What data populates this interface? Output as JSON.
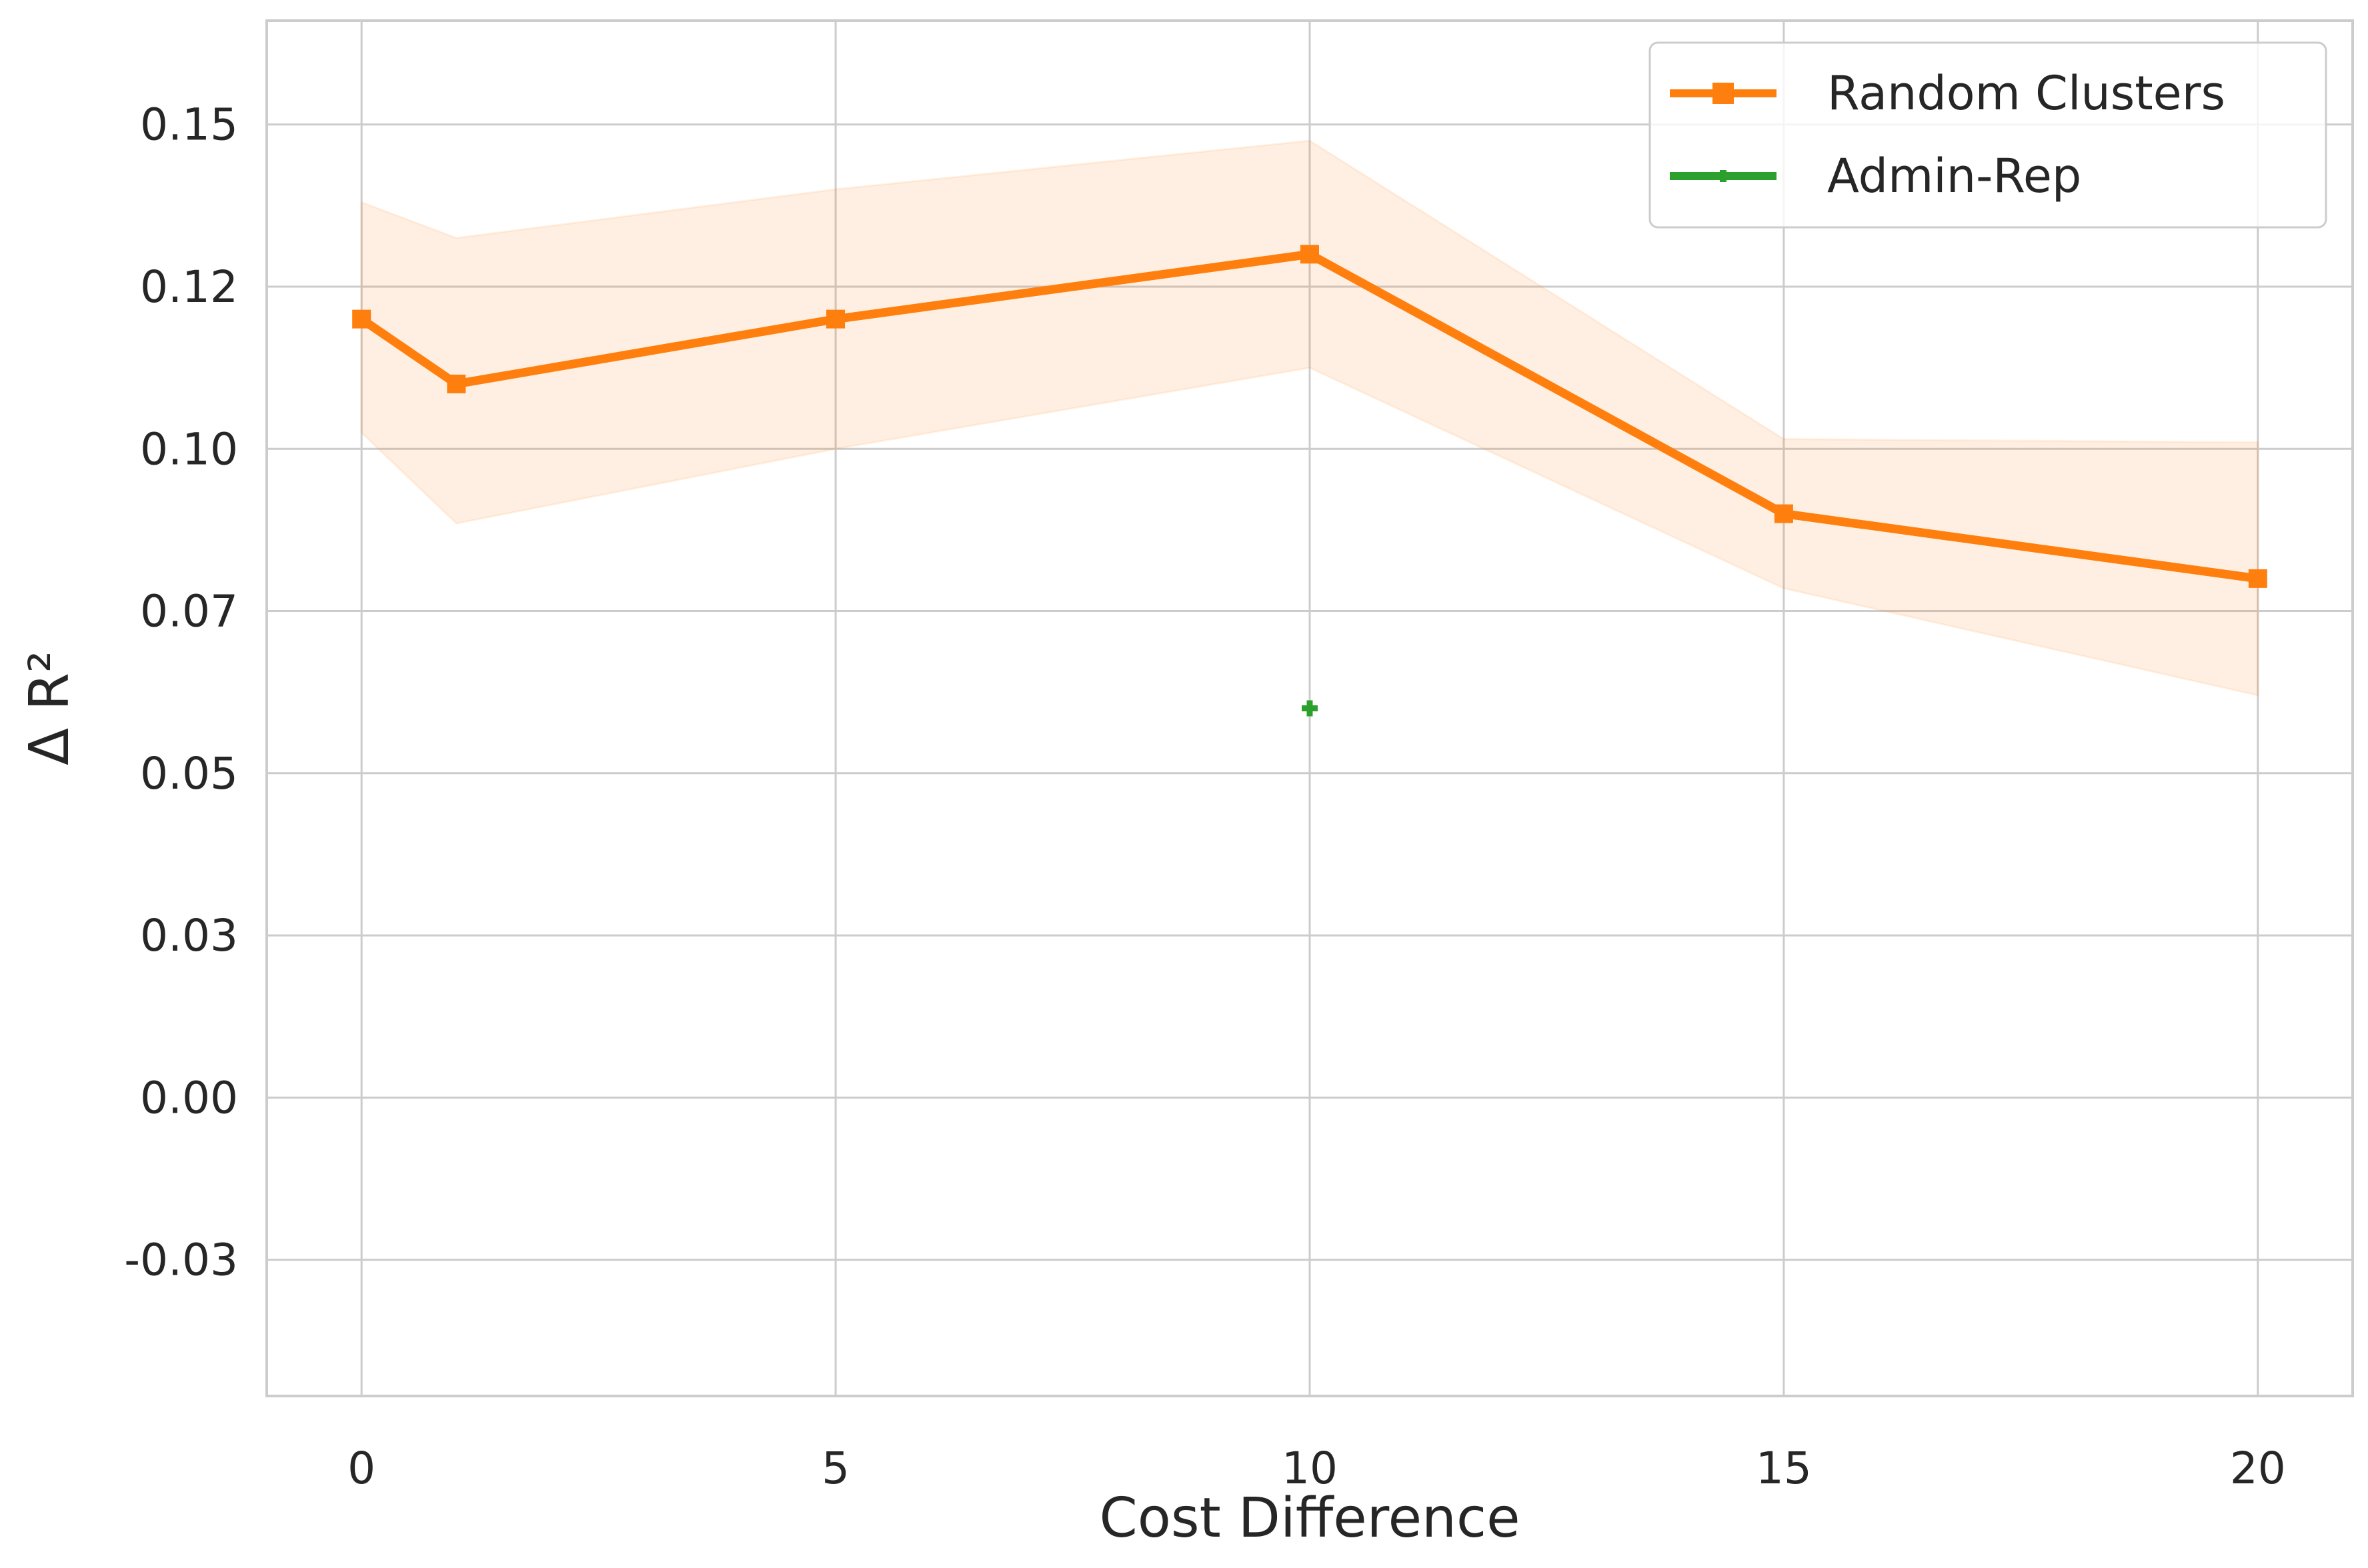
{
  "chart_data": {
    "type": "line",
    "xlabel": "Cost Difference",
    "ylabel": "Δ R²",
    "xlim": [
      -1,
      21
    ],
    "ylim": [
      -0.046,
      0.166
    ],
    "x_ticks": [
      0,
      5,
      10,
      15,
      20
    ],
    "x_tick_labels": [
      "0",
      "5",
      "10",
      "15",
      "20"
    ],
    "y_ticks": [
      -0.025,
      0.0,
      0.025,
      0.05,
      0.075,
      0.1,
      0.125,
      0.15
    ],
    "y_tick_labels": [
      "-0.03",
      "0.00",
      "0.03",
      "0.05",
      "0.07",
      "0.10",
      "0.12",
      "0.15"
    ],
    "grid": true,
    "legend_position": "top-right",
    "series": [
      {
        "name": "Random Clusters",
        "color": "#ff7f0e",
        "marker": "square",
        "x": [
          0,
          1,
          5,
          10,
          15,
          20
        ],
        "y": [
          0.12,
          0.11,
          0.12,
          0.13,
          0.09,
          0.08
        ],
        "ci_lower": [
          0.1025,
          0.0885,
          0.1,
          0.1125,
          0.0785,
          0.062
        ],
        "ci_upper": [
          0.138,
          0.1325,
          0.14,
          0.1475,
          0.1015,
          0.101
        ]
      },
      {
        "name": "Admin-Rep",
        "color": "#2ca02c",
        "marker": "plus",
        "x": [
          10
        ],
        "y": [
          0.06
        ]
      }
    ]
  }
}
